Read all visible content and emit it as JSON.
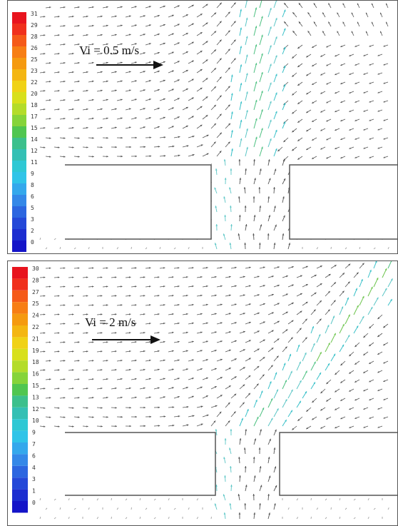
{
  "panels": [
    {
      "velocity_label": "Vi = 0.5 m/s",
      "colorbar_ticks": [
        "31",
        "29",
        "28",
        "26",
        "25",
        "23",
        "22",
        "20",
        "18",
        "17",
        "15",
        "14",
        "12",
        "11",
        "9",
        "8",
        "6",
        "5",
        "3",
        "2",
        "0"
      ],
      "shift": 0
    },
    {
      "velocity_label": "Vi = 2 m/s",
      "colorbar_ticks": [
        "30",
        "28",
        "27",
        "25",
        "24",
        "22",
        "21",
        "19",
        "18",
        "16",
        "15",
        "13",
        "12",
        "10",
        "9",
        "7",
        "6",
        "4",
        "3",
        "1",
        "0"
      ],
      "shift": 1
    }
  ],
  "colors": {
    "colorbar": [
      "#e8141e",
      "#f0301c",
      "#f55a18",
      "#f77e14",
      "#f59a10",
      "#f4b612",
      "#f0d216",
      "#d8e01c",
      "#b4dc2a",
      "#86d43a",
      "#50c650",
      "#3cc08c",
      "#34c0b4",
      "#2ec8d4",
      "#30c4e8",
      "#34a8ec",
      "#3488e8",
      "#2c66e0",
      "#2448d8",
      "#1c2ed0",
      "#1414c8"
    ],
    "vectors": [
      "#555555",
      "#5cc6c6",
      "#38c0c8",
      "#4cc080",
      "#6cc44c"
    ]
  }
}
